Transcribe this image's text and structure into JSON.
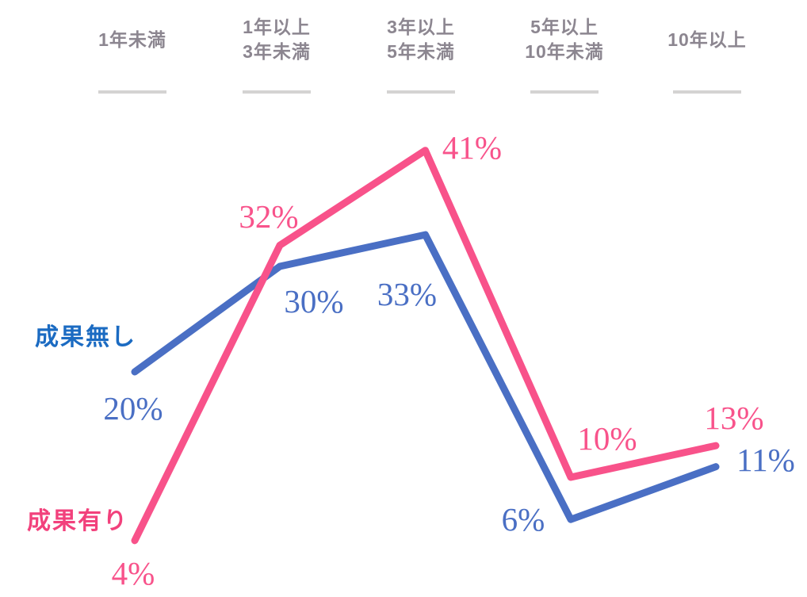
{
  "background": "#ffffff",
  "header": {
    "label_color": "#8c8690",
    "tick_color": "#d4d3d2"
  },
  "chart_data": {
    "type": "line",
    "categories": [
      "1年未満",
      "1年以上\n3年未満",
      "3年以上\n5年未満",
      "5年以上\n10年未満",
      "10年以上"
    ],
    "series": [
      {
        "name": "成果無し",
        "values": [
          20,
          30,
          33,
          6,
          11
        ],
        "line_color": "#4a6fc4",
        "label_color": "#4a6fc4",
        "legend_color": "#1b6bc2"
      },
      {
        "name": "成果有り",
        "values": [
          4,
          32,
          41,
          10,
          13
        ],
        "line_color": "#f8528a",
        "label_color": "#f8538b",
        "legend_color": "#f2417c"
      }
    ],
    "unit": "%",
    "ylim": [
      0,
      55
    ],
    "grid": false,
    "x_axis": "top",
    "legend_position": "inline-left"
  }
}
